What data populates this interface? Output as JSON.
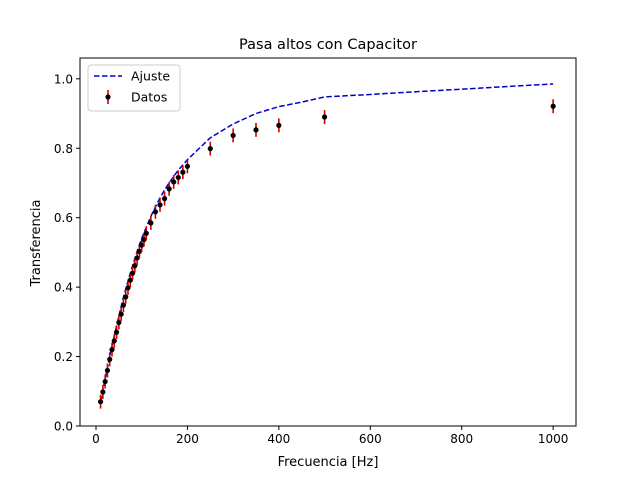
{
  "chart_data": {
    "type": "scatter",
    "title": "Pasa altos con Capacitor",
    "xlabel": "Frecuencia [Hz]",
    "ylabel": "Transferencia",
    "xlim": [
      -35,
      1050
    ],
    "ylim": [
      0,
      1.06
    ],
    "xticks": [
      0,
      200,
      400,
      600,
      800,
      1000
    ],
    "yticks": [
      0.0,
      0.2,
      0.4,
      0.6,
      0.8,
      1.0
    ],
    "grid": false,
    "legend_position": "top-left",
    "series": [
      {
        "name": "Ajuste",
        "style": "dashed-line",
        "color": "#0000cc",
        "x": [
          10,
          20,
          30,
          40,
          50,
          60,
          70,
          80,
          90,
          100,
          110,
          120,
          130,
          140,
          150,
          160,
          170,
          180,
          190,
          200,
          250,
          300,
          350,
          400,
          450,
          500,
          600,
          700,
          800,
          900,
          1000
        ],
        "y": [
          0.07,
          0.135,
          0.2,
          0.26,
          0.317,
          0.37,
          0.418,
          0.462,
          0.503,
          0.54,
          0.573,
          0.604,
          0.631,
          0.657,
          0.68,
          0.7,
          0.719,
          0.737,
          0.752,
          0.767,
          0.83,
          0.87,
          0.9,
          0.92,
          0.933,
          0.948,
          0.955,
          0.963,
          0.97,
          0.978,
          0.985
        ]
      },
      {
        "name": "Datos",
        "style": "errorbar-points",
        "color": "#000000",
        "error_color": "#cc0000",
        "x": [
          10,
          15,
          20,
          25,
          30,
          35,
          40,
          45,
          50,
          55,
          60,
          65,
          70,
          75,
          80,
          85,
          90,
          95,
          100,
          105,
          110,
          120,
          130,
          140,
          150,
          160,
          170,
          180,
          190,
          200,
          250,
          300,
          350,
          400,
          500,
          1000
        ],
        "y": [
          0.07,
          0.098,
          0.128,
          0.16,
          0.192,
          0.22,
          0.245,
          0.27,
          0.298,
          0.322,
          0.348,
          0.372,
          0.398,
          0.42,
          0.44,
          0.462,
          0.484,
          0.503,
          0.521,
          0.537,
          0.555,
          0.585,
          0.617,
          0.637,
          0.655,
          0.683,
          0.703,
          0.716,
          0.731,
          0.748,
          0.799,
          0.837,
          0.853,
          0.866,
          0.89,
          0.921
        ],
        "yerr": 0.02
      }
    ]
  }
}
